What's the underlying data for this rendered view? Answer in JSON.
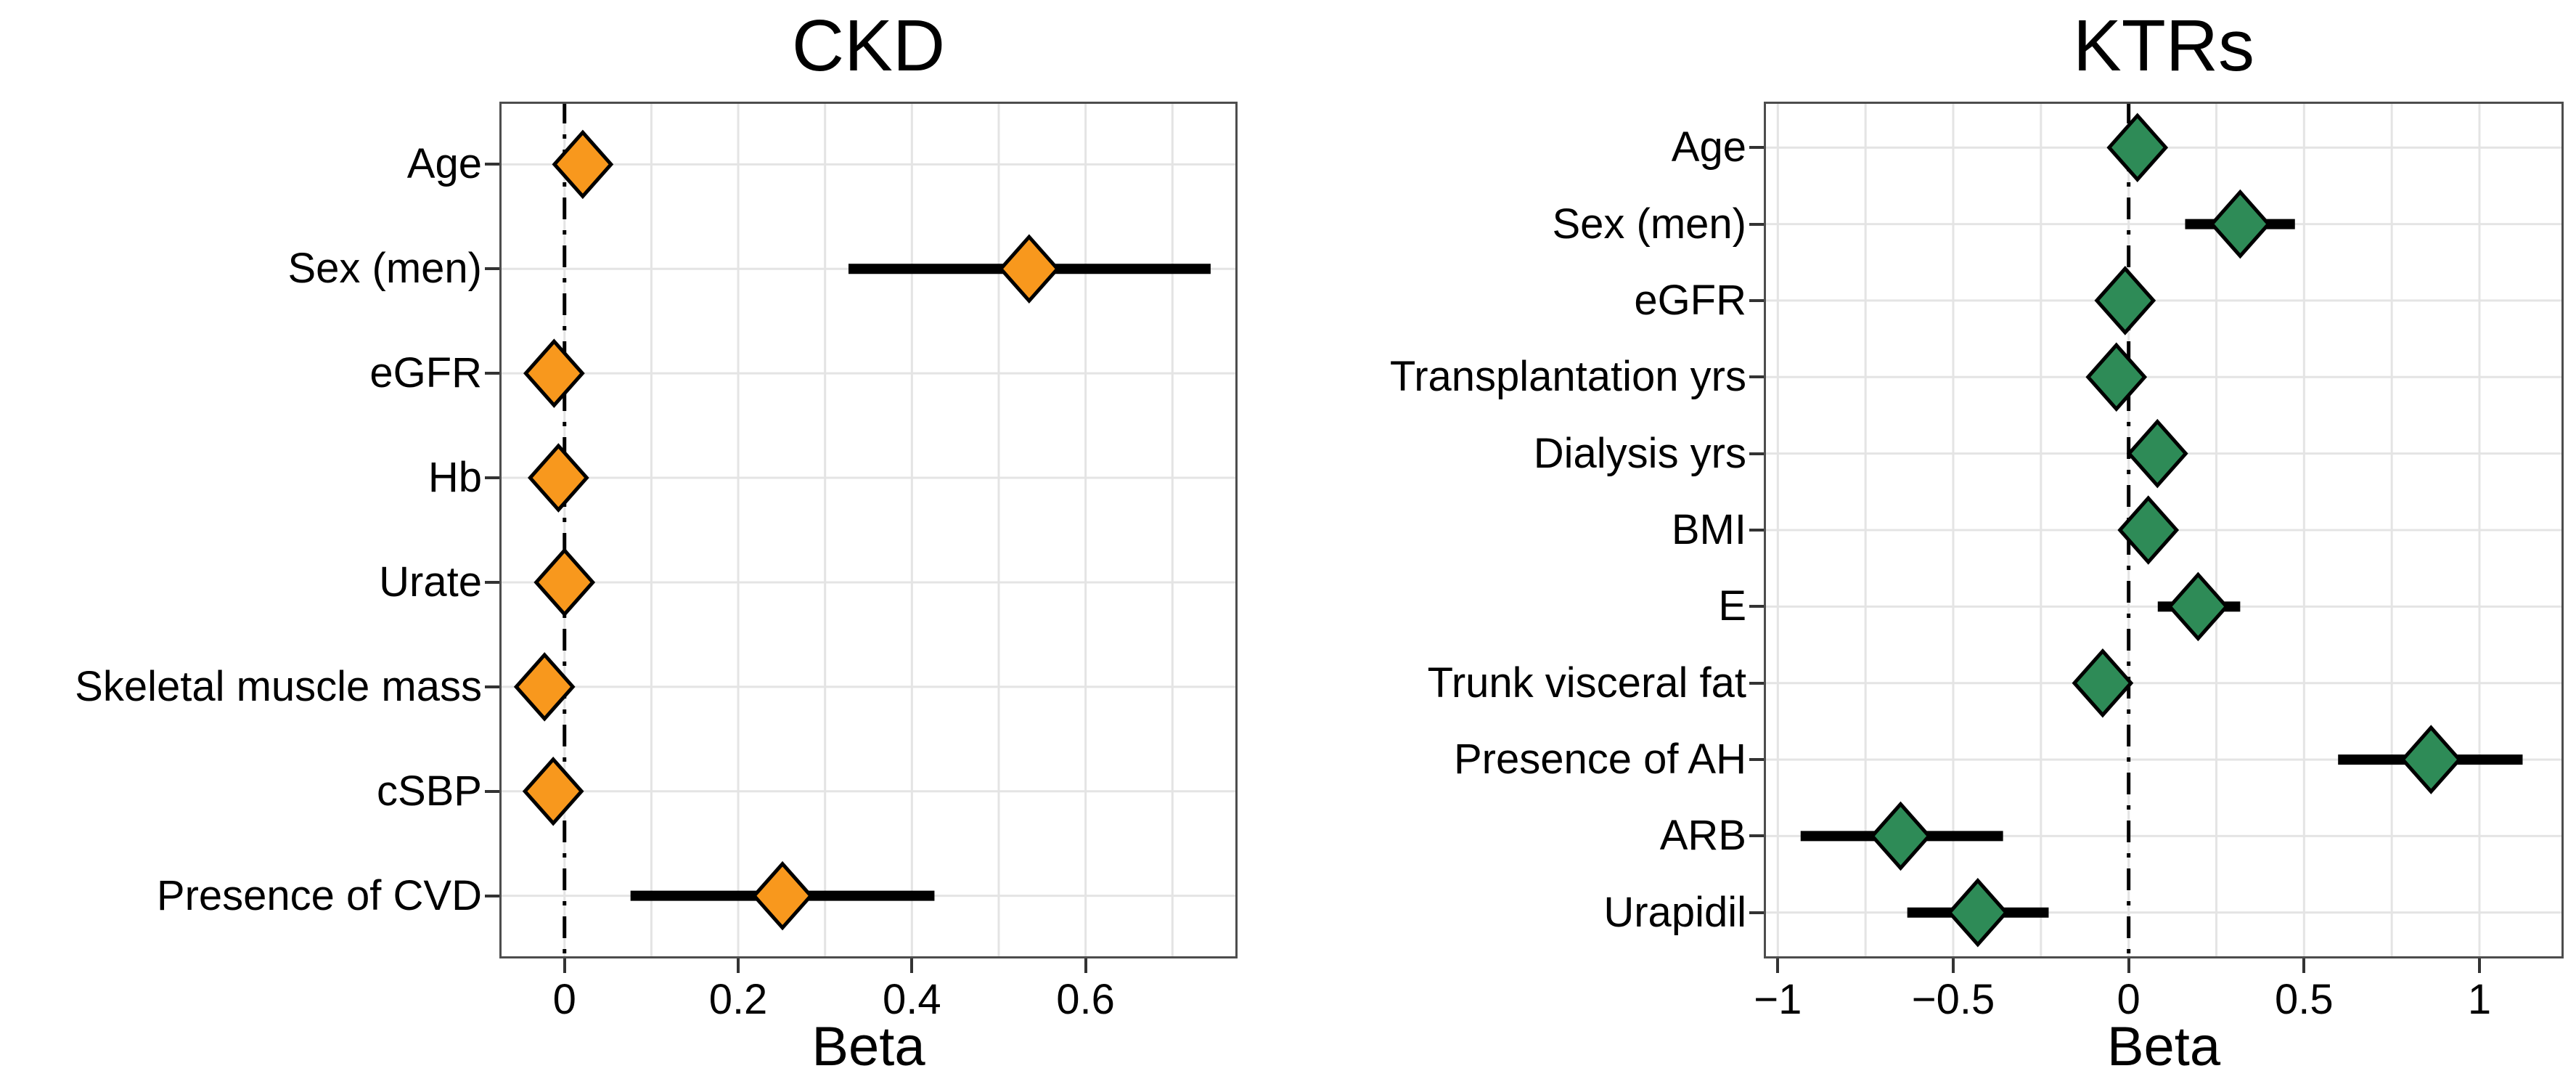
{
  "figure": {
    "background": "#FFFFFF",
    "text_color": "#000000",
    "panel_border_color": "#4D4D4D",
    "gridline_color": "#E4E4E4",
    "ci_color": "#000000",
    "zero_line_style": "dash-dot"
  },
  "chart_data": [
    {
      "type": "forest",
      "panel": "left",
      "title": "CKD",
      "xlabel": "Beta",
      "marker": "diamond",
      "marker_color": "#F8981D",
      "xlim": [
        -0.075,
        0.775
      ],
      "x_major_ticks": [
        0,
        0.2,
        0.4,
        0.6
      ],
      "x_tick_labels": [
        "0",
        "0.2",
        "0.4",
        "0.6"
      ],
      "x_minor_grid_step": 0.1,
      "zero_line_x": 0,
      "grid": true,
      "categories": [
        "Age",
        "Sex (men)",
        "eGFR",
        "Hb",
        "Urate",
        "Skeletal muscle mass",
        "cSBP",
        "Presence of CVD"
      ],
      "points": [
        {
          "label": "Age",
          "beta": 0.021,
          "ci_low": null,
          "ci_high": null
        },
        {
          "label": "Sex (men)",
          "beta": 0.535,
          "ci_low": 0.327,
          "ci_high": 0.744
        },
        {
          "label": "eGFR",
          "beta": -0.012,
          "ci_low": null,
          "ci_high": null
        },
        {
          "label": "Hb",
          "beta": -0.007,
          "ci_low": null,
          "ci_high": null
        },
        {
          "label": "Urate",
          "beta": 0.0,
          "ci_low": null,
          "ci_high": null
        },
        {
          "label": "Skeletal muscle mass",
          "beta": -0.023,
          "ci_low": null,
          "ci_high": null
        },
        {
          "label": "cSBP",
          "beta": -0.013,
          "ci_low": null,
          "ci_high": null
        },
        {
          "label": "Presence of CVD",
          "beta": 0.251,
          "ci_low": 0.076,
          "ci_high": 0.426
        }
      ]
    },
    {
      "type": "forest",
      "panel": "right",
      "title": "KTRs",
      "xlabel": "Beta",
      "marker": "diamond",
      "marker_color": "#2E8B57",
      "xlim": [
        -1.04,
        1.24
      ],
      "x_major_ticks": [
        -1,
        -0.5,
        0,
        0.5,
        1
      ],
      "x_tick_labels": [
        "−1",
        "−0.5",
        "0",
        "0.5",
        "1"
      ],
      "x_minor_grid_step": 0.25,
      "zero_line_x": 0,
      "grid": true,
      "categories": [
        "Age",
        "Sex (men)",
        "eGFR",
        "Transplantation yrs",
        "Dialysis yrs",
        "BMI",
        "E",
        "Trunk visceral fat",
        "Presence of AH",
        "ARB",
        "Urapidil"
      ],
      "points": [
        {
          "label": "Age",
          "beta": 0.025,
          "ci_low": null,
          "ci_high": null
        },
        {
          "label": "Sex (men)",
          "beta": 0.318,
          "ci_low": 0.161,
          "ci_high": 0.474
        },
        {
          "label": "eGFR",
          "beta": -0.01,
          "ci_low": null,
          "ci_high": null
        },
        {
          "label": "Transplantation yrs",
          "beta": -0.035,
          "ci_low": null,
          "ci_high": null
        },
        {
          "label": "Dialysis yrs",
          "beta": 0.082,
          "ci_low": null,
          "ci_high": null
        },
        {
          "label": "BMI",
          "beta": 0.056,
          "ci_low": null,
          "ci_high": null
        },
        {
          "label": "E",
          "beta": 0.198,
          "ci_low": 0.083,
          "ci_high": 0.318
        },
        {
          "label": "Trunk visceral fat",
          "beta": -0.074,
          "ci_low": null,
          "ci_high": null
        },
        {
          "label": "Presence of AH",
          "beta": 0.862,
          "ci_low": 0.597,
          "ci_high": 1.123
        },
        {
          "label": "ARB",
          "beta": -0.65,
          "ci_low": -0.935,
          "ci_high": -0.358
        },
        {
          "label": "Urapidil",
          "beta": -0.43,
          "ci_low": -0.631,
          "ci_high": -0.228
        }
      ]
    }
  ]
}
